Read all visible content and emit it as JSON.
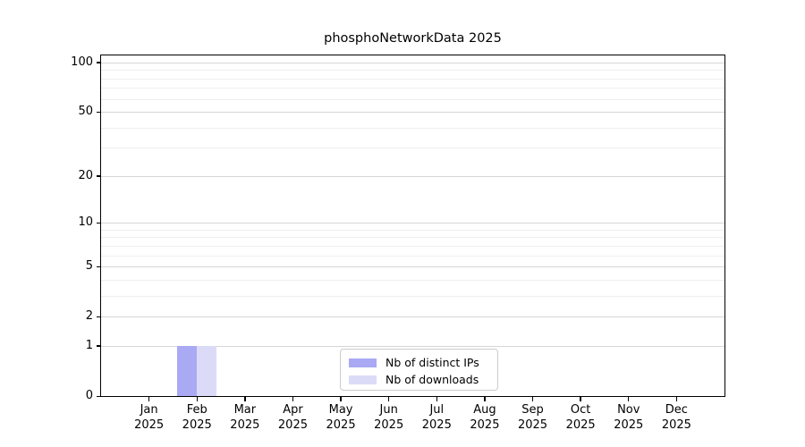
{
  "chart_data": {
    "type": "bar",
    "title": "phosphoNetworkData 2025",
    "categories": [
      "Jan",
      "Feb",
      "Mar",
      "Apr",
      "May",
      "Jun",
      "Jul",
      "Aug",
      "Sep",
      "Oct",
      "Nov",
      "Dec"
    ],
    "category_year": "2025",
    "series": [
      {
        "name": "Nb of distinct IPs",
        "color": "#a9a9f4",
        "values": [
          0,
          1,
          0,
          0,
          0,
          0,
          0,
          0,
          0,
          0,
          0,
          0
        ]
      },
      {
        "name": "Nb of downloads",
        "color": "#dbdbf8",
        "values": [
          0,
          1,
          0,
          0,
          0,
          0,
          0,
          0,
          0,
          0,
          0,
          0
        ]
      }
    ],
    "y_scale": "log1p",
    "y_ticks": [
      0,
      1,
      2,
      5,
      10,
      20,
      50,
      100
    ],
    "y_minor_gridlines": [
      3,
      4,
      6,
      7,
      8,
      9,
      30,
      40,
      60,
      70,
      80,
      90
    ],
    "ylim": [
      0,
      110
    ],
    "grid": "horizontal",
    "legend_position": "bottom-center",
    "spine_color": "#000000",
    "major_grid_color": "#d6d6d6",
    "minor_grid_color": "#efefef"
  }
}
